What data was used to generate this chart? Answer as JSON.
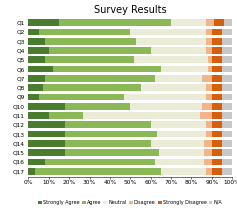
{
  "title": "Survey Results",
  "categories": [
    "Q1",
    "Q2",
    "Q3",
    "Q4",
    "Q5",
    "Q6",
    "Q7",
    "Q8",
    "Q9",
    "Q10",
    "Q11",
    "Q12",
    "Q13",
    "Q14",
    "Q15",
    "Q16",
    "Q17"
  ],
  "strongly_agree": [
    15,
    5,
    8,
    10,
    8,
    12,
    8,
    7,
    5,
    18,
    10,
    18,
    18,
    18,
    18,
    8,
    3
  ],
  "agree": [
    55,
    45,
    45,
    50,
    44,
    53,
    54,
    48,
    42,
    32,
    17,
    42,
    45,
    42,
    46,
    54,
    62
  ],
  "neutral": [
    17,
    37,
    34,
    27,
    36,
    23,
    23,
    32,
    40,
    35,
    57,
    27,
    24,
    26,
    22,
    24,
    22
  ],
  "disagree": [
    4,
    3,
    3,
    3,
    2,
    2,
    5,
    3,
    3,
    5,
    6,
    3,
    3,
    4,
    4,
    4,
    3
  ],
  "strongly_disagree": [
    5,
    5,
    5,
    5,
    5,
    5,
    5,
    5,
    5,
    5,
    5,
    5,
    5,
    5,
    5,
    5,
    5
  ],
  "na": [
    4,
    5,
    5,
    5,
    5,
    5,
    5,
    5,
    5,
    5,
    5,
    5,
    5,
    5,
    5,
    5,
    5
  ],
  "colors": {
    "strongly_agree": "#4a7c2f",
    "agree": "#8ab856",
    "neutral": "#eaecd8",
    "disagree": "#f4b48a",
    "strongly_disagree": "#d95e0a",
    "na": "#c8c8c8"
  },
  "legend_labels": [
    "Strongly Agree",
    "Agree",
    "Neutral",
    "Disagree",
    "Strongly Disagree",
    "N/A"
  ],
  "xlabel_ticks": [
    "0%",
    "10%",
    "20%",
    "30%",
    "40%",
    "50%",
    "60%",
    "70%",
    "80%",
    "90%",
    "100%"
  ],
  "xlim": [
    0,
    100
  ],
  "title_fontsize": 7,
  "tick_fontsize": 4.2,
  "legend_fontsize": 3.5,
  "bar_height": 0.72
}
